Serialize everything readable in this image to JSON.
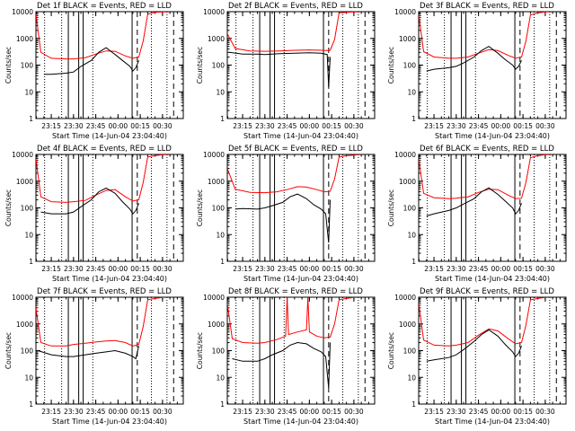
{
  "figure": {
    "xlabel": "Start Time (14-Jun-04 23:04:40)",
    "ylabel": "Counts/sec",
    "colors": {
      "events": "#000000",
      "lld": "#ff0000",
      "background": "#ffffff"
    }
  },
  "chart_data": [
    {
      "type": "line",
      "title": "Det 1f BLACK = Events, RED = LLD",
      "xlabel": "Start Time (14-Jun-04 23:04:40)",
      "ylabel": "Counts/sec",
      "yscale": "log",
      "ylim": [
        1,
        10000
      ],
      "xlim": [
        "23:04:40",
        "00:44:00"
      ],
      "x_ticks": [
        "23:15",
        "23:30",
        "23:45",
        "00:00",
        "00:15",
        "00:30"
      ],
      "y_ticks": [
        "1",
        "10",
        "100",
        "1000",
        "10000"
      ],
      "series": [
        {
          "color": "#ff0000",
          "x": [
            "23:04:40",
            "23:08",
            "23:15",
            "23:25",
            "23:30",
            "23:38",
            "23:45",
            "23:52",
            "23:58",
            "00:05",
            "00:10",
            "00:14",
            "00:17",
            "00:20",
            "00:25",
            "00:30",
            "00:33"
          ],
          "y": [
            8000,
            300,
            180,
            170,
            170,
            190,
            260,
            340,
            330,
            220,
            180,
            200,
            800,
            8000,
            9500,
            9800,
            9800
          ]
        },
        {
          "color": "#000000",
          "x": [
            "23:10",
            "23:15",
            "23:25",
            "23:30",
            "23:35",
            "23:42",
            "23:47",
            "23:52",
            "23:58",
            "00:03",
            "00:08",
            "00:10",
            "00:12",
            "00:14"
          ],
          "y": [
            45,
            45,
            50,
            55,
            90,
            150,
            300,
            450,
            250,
            150,
            90,
            60,
            80,
            150
          ]
        }
      ]
    },
    {
      "type": "line",
      "title": "Det 2f BLACK = Events, RED = LLD",
      "xlabel": "Start Time (14-Jun-04 23:04:40)",
      "ylabel": "Counts/sec",
      "yscale": "log",
      "ylim": [
        1,
        10000
      ],
      "xlim": [
        "23:04:40",
        "00:44:00"
      ],
      "x_ticks": [
        "23:15",
        "23:30",
        "23:45",
        "00:00",
        "00:15",
        "00:30"
      ],
      "y_ticks": [
        "1",
        "10",
        "100",
        "1000",
        "10000"
      ],
      "series": [
        {
          "color": "#ff0000",
          "x": [
            "23:04:40",
            "23:10",
            "23:20",
            "23:30",
            "23:40",
            "23:50",
            "00:00",
            "00:08",
            "00:12",
            "00:14",
            "00:17",
            "00:20",
            "00:25",
            "00:30",
            "00:33"
          ],
          "y": [
            1500,
            420,
            340,
            330,
            340,
            360,
            370,
            360,
            350,
            360,
            900,
            9000,
            9500,
            9800,
            9800
          ]
        },
        {
          "color": "#000000",
          "x": [
            "23:06",
            "23:15",
            "23:25",
            "23:30",
            "23:40",
            "23:50",
            "00:00",
            "00:08",
            "00:12",
            "00:13",
            "00:14"
          ],
          "y": [
            300,
            260,
            260,
            250,
            270,
            280,
            290,
            280,
            250,
            15,
            200
          ]
        }
      ]
    },
    {
      "type": "line",
      "title": "Det 3f BLACK = Events, RED = LLD",
      "xlabel": "Start Time (14-Jun-04 23:04:40)",
      "ylabel": "Counts/sec",
      "yscale": "log",
      "ylim": [
        1,
        10000
      ],
      "xlim": [
        "23:04:40",
        "00:44:00"
      ],
      "x_ticks": [
        "23:15",
        "23:30",
        "23:45",
        "00:00",
        "00:15",
        "00:30"
      ],
      "y_ticks": [
        "1",
        "10",
        "100",
        "1000",
        "10000"
      ],
      "series": [
        {
          "color": "#ff0000",
          "x": [
            "23:04:40",
            "23:08",
            "23:15",
            "23:25",
            "23:30",
            "23:38",
            "23:45",
            "23:52",
            "23:58",
            "00:05",
            "00:10",
            "00:14",
            "00:17",
            "00:20",
            "00:25",
            "00:30",
            "00:33"
          ],
          "y": [
            8000,
            320,
            200,
            180,
            180,
            200,
            280,
            380,
            350,
            230,
            180,
            200,
            800,
            7500,
            9000,
            9800,
            9800
          ]
        },
        {
          "color": "#000000",
          "x": [
            "23:10",
            "23:15",
            "23:25",
            "23:30",
            "23:35",
            "23:42",
            "23:47",
            "23:52",
            "23:58",
            "00:03",
            "00:08",
            "00:10",
            "00:12",
            "00:14"
          ],
          "y": [
            60,
            70,
            80,
            90,
            120,
            200,
            350,
            500,
            280,
            160,
            100,
            70,
            90,
            150
          ]
        }
      ]
    },
    {
      "type": "line",
      "title": "Det 4f BLACK = Events, RED = LLD",
      "xlabel": "Start Time (14-Jun-04 23:04:40)",
      "ylabel": "Counts/sec",
      "yscale": "log",
      "ylim": [
        1,
        10000
      ],
      "xlim": [
        "23:04:40",
        "00:44:00"
      ],
      "x_ticks": [
        "23:15",
        "23:30",
        "23:45",
        "00:00",
        "00:15",
        "00:30"
      ],
      "y_ticks": [
        "1",
        "10",
        "100",
        "1000",
        "10000"
      ],
      "series": [
        {
          "color": "#ff0000",
          "x": [
            "23:04:40",
            "23:08",
            "23:15",
            "23:25",
            "23:30",
            "23:38",
            "23:45",
            "23:52",
            "23:58",
            "00:05",
            "00:10",
            "00:14",
            "00:17",
            "00:20",
            "00:25",
            "00:30",
            "00:33"
          ],
          "y": [
            7000,
            260,
            170,
            160,
            170,
            190,
            300,
            450,
            480,
            260,
            180,
            200,
            900,
            8000,
            9000,
            9800,
            9800
          ]
        },
        {
          "color": "#000000",
          "x": [
            "23:08",
            "23:15",
            "23:25",
            "23:30",
            "23:35",
            "23:42",
            "23:47",
            "23:52",
            "23:58",
            "00:03",
            "00:08",
            "00:10",
            "00:12",
            "00:14"
          ],
          "y": [
            70,
            60,
            60,
            70,
            110,
            200,
            400,
            550,
            350,
            170,
            90,
            60,
            80,
            150
          ]
        }
      ]
    },
    {
      "type": "line",
      "title": "Det 5f BLACK = Events, RED = LLD",
      "xlabel": "Start Time (14-Jun-04 23:04:40)",
      "ylabel": "Counts/sec",
      "yscale": "log",
      "ylim": [
        1,
        10000
      ],
      "xlim": [
        "23:04:40",
        "00:44:00"
      ],
      "x_ticks": [
        "23:15",
        "23:30",
        "23:45",
        "00:00",
        "00:15",
        "00:30"
      ],
      "y_ticks": [
        "1",
        "10",
        "100",
        "1000",
        "10000"
      ],
      "series": [
        {
          "color": "#ff0000",
          "x": [
            "23:04:40",
            "23:10",
            "23:20",
            "23:30",
            "23:38",
            "23:45",
            "23:52",
            "23:58",
            "00:05",
            "00:10",
            "00:14",
            "00:17",
            "00:20",
            "00:25",
            "00:30",
            "00:33"
          ],
          "y": [
            3000,
            500,
            380,
            370,
            400,
            480,
            620,
            600,
            480,
            400,
            420,
            1200,
            8000,
            9000,
            9500,
            9800
          ]
        },
        {
          "color": "#000000",
          "x": [
            "23:10",
            "23:15",
            "23:25",
            "23:30",
            "23:35",
            "23:42",
            "23:47",
            "23:52",
            "23:58",
            "00:03",
            "00:08",
            "00:11",
            "00:13",
            "00:14"
          ],
          "y": [
            90,
            95,
            90,
            100,
            120,
            160,
            260,
            330,
            220,
            130,
            90,
            60,
            5,
            200
          ]
        }
      ]
    },
    {
      "type": "line",
      "title": "Det 6f BLACK = Events, RED = LLD",
      "xlabel": "Start Time (14-Jun-04 23:04:40)",
      "ylabel": "Counts/sec",
      "yscale": "log",
      "ylim": [
        1,
        10000
      ],
      "xlim": [
        "23:04:40",
        "00:44:00"
      ],
      "x_ticks": [
        "23:15",
        "23:30",
        "23:45",
        "00:00",
        "00:15",
        "00:30"
      ],
      "y_ticks": [
        "1",
        "10",
        "100",
        "1000",
        "10000"
      ],
      "series": [
        {
          "color": "#ff0000",
          "x": [
            "23:04:40",
            "23:08",
            "23:15",
            "23:25",
            "23:30",
            "23:38",
            "23:45",
            "23:52",
            "23:58",
            "00:05",
            "00:10",
            "00:14",
            "00:17",
            "00:20",
            "00:25",
            "00:30",
            "00:33"
          ],
          "y": [
            7000,
            350,
            240,
            220,
            230,
            260,
            380,
            500,
            480,
            300,
            220,
            230,
            900,
            7500,
            9000,
            9800,
            9800
          ]
        },
        {
          "color": "#000000",
          "x": [
            "23:10",
            "23:15",
            "23:25",
            "23:30",
            "23:35",
            "23:42",
            "23:47",
            "23:52",
            "23:58",
            "00:03",
            "00:08",
            "00:10",
            "00:12",
            "00:14"
          ],
          "y": [
            50,
            60,
            80,
            100,
            140,
            220,
            400,
            560,
            320,
            180,
            100,
            60,
            80,
            150
          ]
        }
      ]
    },
    {
      "type": "line",
      "title": "Det 7f BLACK = Events, RED = LLD",
      "xlabel": "Start Time (14-Jun-04 23:04:40)",
      "ylabel": "Counts/sec",
      "yscale": "log",
      "ylim": [
        1,
        10000
      ],
      "xlim": [
        "23:04:40",
        "00:44:00"
      ],
      "x_ticks": [
        "23:15",
        "23:30",
        "23:45",
        "00:00",
        "00:15",
        "00:30"
      ],
      "y_ticks": [
        "1",
        "10",
        "100",
        "1000",
        "10000"
      ],
      "series": [
        {
          "color": "#ff0000",
          "x": [
            "23:04:40",
            "23:08",
            "23:15",
            "23:25",
            "23:30",
            "23:38",
            "23:45",
            "23:52",
            "23:58",
            "00:05",
            "00:10",
            "00:14",
            "00:17",
            "00:20",
            "00:25",
            "00:30",
            "00:33"
          ],
          "y": [
            4000,
            200,
            150,
            150,
            170,
            190,
            210,
            230,
            240,
            200,
            150,
            170,
            800,
            8000,
            9000,
            9800,
            9800
          ]
        },
        {
          "color": "#000000",
          "x": [
            "23:06",
            "23:15",
            "23:25",
            "23:30",
            "23:38",
            "23:45",
            "23:52",
            "23:58",
            "00:05",
            "00:10",
            "00:12",
            "00:14"
          ],
          "y": [
            100,
            70,
            60,
            60,
            70,
            80,
            90,
            100,
            80,
            60,
            50,
            150
          ]
        }
      ]
    },
    {
      "type": "line",
      "title": "Det 8f BLACK = Events, RED = LLD",
      "xlabel": "Start Time (14-Jun-04 23:04:40)",
      "ylabel": "Counts/sec",
      "yscale": "log",
      "ylim": [
        1,
        10000
      ],
      "xlim": [
        "23:04:40",
        "00:44:00"
      ],
      "x_ticks": [
        "23:15",
        "23:30",
        "23:45",
        "00:00",
        "00:15",
        "00:30"
      ],
      "y_ticks": [
        "1",
        "10",
        "100",
        "1000",
        "10000"
      ],
      "series": [
        {
          "color": "#ff0000",
          "x": [
            "23:04:40",
            "23:08",
            "23:15",
            "23:25",
            "23:30",
            "23:38",
            "23:44",
            "23:45",
            "23:46",
            "23:52",
            "23:58",
            "23:59",
            "00:00",
            "00:05",
            "00:10",
            "00:14",
            "00:17",
            "00:20",
            "00:25",
            "00:30",
            "00:33"
          ],
          "y": [
            6000,
            280,
            200,
            190,
            200,
            260,
            350,
            9800,
            400,
            500,
            600,
            9800,
            500,
            350,
            300,
            320,
            1000,
            8000,
            9000,
            9800,
            9800
          ]
        },
        {
          "color": "#000000",
          "x": [
            "23:08",
            "23:15",
            "23:25",
            "23:30",
            "23:35",
            "23:42",
            "23:47",
            "23:52",
            "23:58",
            "00:03",
            "00:08",
            "00:11",
            "00:13",
            "00:14"
          ],
          "y": [
            50,
            40,
            40,
            50,
            70,
            100,
            160,
            200,
            180,
            120,
            90,
            60,
            4,
            200
          ]
        }
      ]
    },
    {
      "type": "line",
      "title": "Det 9f BLACK = Events, RED = LLD",
      "xlabel": "Start Time (14-Jun-04 23:04:40)",
      "ylabel": "Counts/sec",
      "yscale": "log",
      "ylim": [
        1,
        10000
      ],
      "xlim": [
        "23:04:40",
        "00:44:00"
      ],
      "x_ticks": [
        "23:15",
        "23:30",
        "23:45",
        "00:00",
        "00:15",
        "00:30"
      ],
      "y_ticks": [
        "1",
        "10",
        "100",
        "1000",
        "10000"
      ],
      "series": [
        {
          "color": "#ff0000",
          "x": [
            "23:04:40",
            "23:08",
            "23:15",
            "23:25",
            "23:30",
            "23:38",
            "23:45",
            "23:52",
            "23:58",
            "00:05",
            "00:10",
            "00:14",
            "00:17",
            "00:20",
            "00:25",
            "00:30",
            "00:33"
          ],
          "y": [
            6000,
            250,
            160,
            150,
            160,
            200,
            380,
            650,
            550,
            280,
            180,
            200,
            900,
            8000,
            9000,
            9800,
            9800
          ]
        },
        {
          "color": "#000000",
          "x": [
            "23:10",
            "23:15",
            "23:25",
            "23:30",
            "23:35",
            "23:42",
            "23:47",
            "23:52",
            "23:58",
            "00:03",
            "00:08",
            "00:10",
            "00:12",
            "00:14"
          ],
          "y": [
            40,
            45,
            55,
            70,
            110,
            220,
            400,
            600,
            350,
            170,
            90,
            60,
            80,
            150
          ]
        }
      ]
    }
  ]
}
